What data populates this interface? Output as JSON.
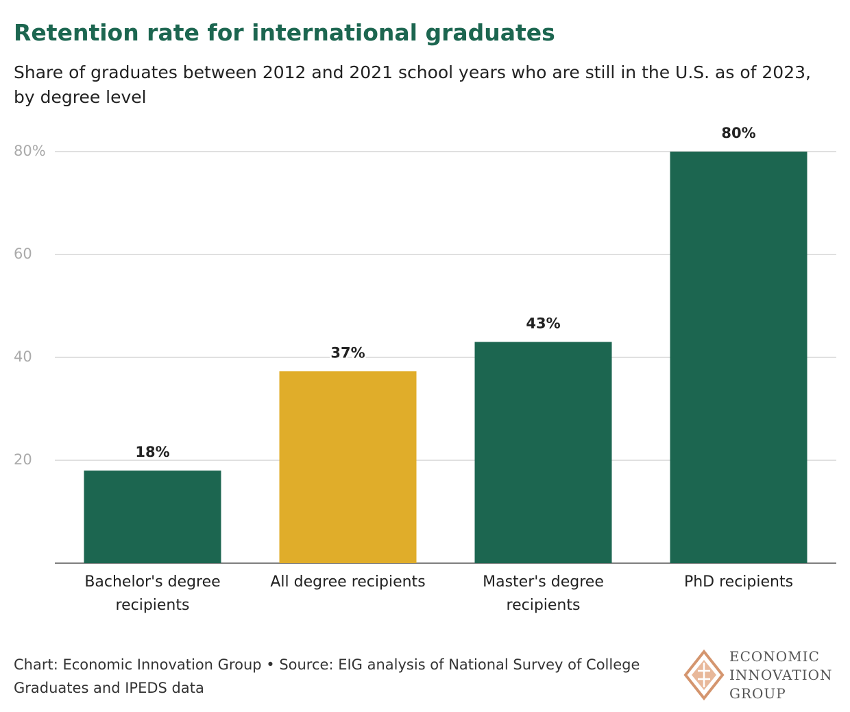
{
  "chart_data": {
    "type": "bar",
    "title": "Retention rate for international graduates",
    "subtitle": "Share of graduates between 2012 and 2021 school years who are still in the U.S. as of 2023, by degree level",
    "categories": [
      "Bachelor's degree recipients",
      "All degree recipients",
      "Master's degree recipients",
      "PhD recipients"
    ],
    "values": [
      18,
      37.3,
      43,
      80
    ],
    "value_labels": [
      "18%",
      "37%",
      "43%",
      "80%"
    ],
    "colors": [
      "#1c6650",
      "#e0ad2a",
      "#1c6650",
      "#1c6650"
    ],
    "ylim": [
      0,
      80
    ],
    "yticks": [
      20,
      40,
      60,
      {
        "value": 80,
        "label": "80%"
      }
    ],
    "grid": true,
    "footer": "Chart: Economic Innovation Group • Source: EIG analysis of National Survey of College Graduates and IPEDS data",
    "logo": [
      "ECONOMIC",
      "INNOVATION",
      "GROUP"
    ]
  }
}
